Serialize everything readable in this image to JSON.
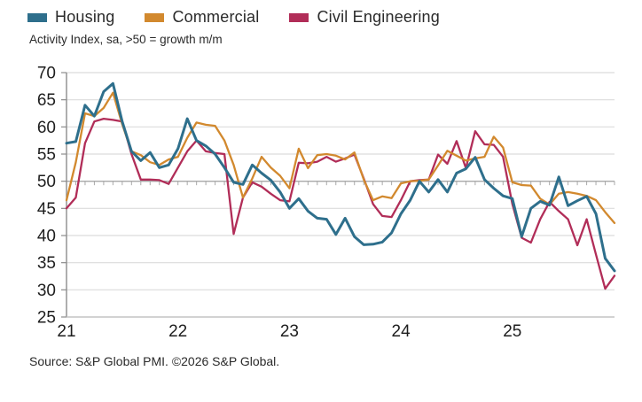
{
  "header": {
    "subtitle": "Activity Index, sa, >50 = growth m/m"
  },
  "footer": {
    "source": "Source: S&P Global PMI. ©2026 S&P Global."
  },
  "chart_data": {
    "type": "line",
    "title": "Activity Index, sa, >50 = growth m/m",
    "x_frequency": "monthly",
    "x_start": "2021-01",
    "x_end": "2025-12",
    "x_tick_labels": [
      "21",
      "22",
      "23",
      "24",
      "25"
    ],
    "ylim": [
      25,
      70
    ],
    "y_ticks": [
      25,
      30,
      35,
      40,
      45,
      50,
      55,
      60,
      65,
      70
    ],
    "reference_line_y": 50,
    "grid": "horizontal",
    "legend_position": "top-left",
    "series": [
      {
        "name": "Housing",
        "color": "#2E6F8C",
        "values": [
          57,
          57.3,
          64,
          62,
          66.5,
          68,
          61,
          55.5,
          53.8,
          55.3,
          52.5,
          53,
          56,
          61.5,
          57.5,
          56.5,
          55,
          52.5,
          49.8,
          49.4,
          53,
          51.5,
          50.2,
          48,
          45,
          46.8,
          44.5,
          43.2,
          43,
          40.2,
          43.2,
          39.8,
          38.3,
          38.4,
          38.8,
          40.5,
          44,
          46.5,
          50,
          48,
          50.3,
          48,
          51.5,
          52.3,
          54.4,
          50.3,
          48.7,
          47.3,
          46.8,
          39.8,
          45,
          46.3,
          45.6,
          50.8,
          45.5,
          46.4,
          47.2,
          44,
          35.8,
          33.5
        ]
      },
      {
        "name": "Commercial",
        "color": "#D2892E",
        "values": [
          46.5,
          53.5,
          62.5,
          62,
          63.5,
          66.3,
          60.5,
          55.5,
          54.8,
          53.5,
          53,
          54,
          54.5,
          58,
          60.8,
          60.4,
          60.2,
          57.5,
          53,
          47,
          50.5,
          54.5,
          52.5,
          51,
          48.7,
          56,
          52.4,
          54.8,
          55,
          54.7,
          54,
          55.3,
          50.3,
          46.5,
          47.2,
          46.9,
          49.6,
          50,
          50.1,
          50.3,
          52.9,
          55.6,
          54.7,
          53.8,
          54.2,
          54.5,
          58.2,
          56.2,
          49.8,
          49.3,
          49.2,
          46.8,
          45.7,
          47.7,
          48,
          47.7,
          47.3,
          46.5,
          44.3,
          42.3
        ]
      },
      {
        "name": "Civil Engineering",
        "color": "#B12D58",
        "values": [
          45,
          47,
          57,
          61,
          61.5,
          61.3,
          61,
          55,
          50.3,
          50.3,
          50.2,
          49.5,
          52.5,
          55.5,
          57.5,
          55.5,
          55.2,
          55,
          40.3,
          47,
          49.8,
          49,
          47.7,
          46.5,
          46.3,
          53.4,
          53.3,
          53.6,
          54.5,
          53.6,
          54.2,
          54.9,
          50.5,
          45.8,
          43.6,
          43.4,
          46.5,
          50,
          50.2,
          50.3,
          54.9,
          53.2,
          57.4,
          52.4,
          59.2,
          56.8,
          56.7,
          54.5,
          45.8,
          39.6,
          38.7,
          43,
          46.2,
          44.5,
          43,
          38.2,
          43,
          36.5,
          30.2,
          32.6
        ]
      }
    ]
  }
}
